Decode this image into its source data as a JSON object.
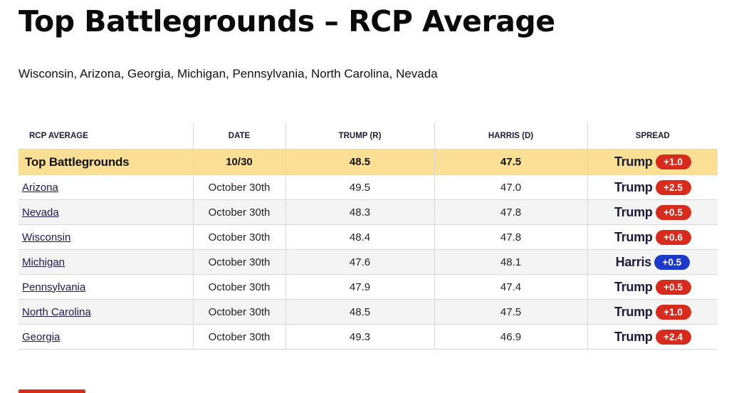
{
  "page": {
    "title": "Top Battlegrounds – RCP Average",
    "subtitle": "Wisconsin, Arizona, Georgia, Michigan, Pennsylvania, North Carolina, Nevada"
  },
  "table": {
    "headers": {
      "name": "RCP AVERAGE",
      "date": "DATE",
      "trump": "TRUMP (R)",
      "harris": "HARRIS (D)",
      "spread": "SPREAD"
    },
    "average": {
      "name": "Top Battlegrounds",
      "date": "10/30",
      "trump": "48.5",
      "harris": "47.5",
      "leader": "Trump",
      "margin": "+1.0",
      "party": "R"
    },
    "rows": [
      {
        "name": "Arizona",
        "date": "October 30th",
        "trump": "49.5",
        "harris": "47.0",
        "leader": "Trump",
        "margin": "+2.5",
        "party": "R"
      },
      {
        "name": "Nevada",
        "date": "October 30th",
        "trump": "48.3",
        "harris": "47.8",
        "leader": "Trump",
        "margin": "+0.5",
        "party": "R"
      },
      {
        "name": "Wisconsin",
        "date": "October 30th",
        "trump": "48.4",
        "harris": "47.8",
        "leader": "Trump",
        "margin": "+0.6",
        "party": "R"
      },
      {
        "name": "Michigan",
        "date": "October 30th",
        "trump": "47.6",
        "harris": "48.1",
        "leader": "Harris",
        "margin": "+0.5",
        "party": "D"
      },
      {
        "name": "Pennsylvania",
        "date": "October 30th",
        "trump": "47.9",
        "harris": "47.4",
        "leader": "Trump",
        "margin": "+0.5",
        "party": "R"
      },
      {
        "name": "North Carolina",
        "date": "October 30th",
        "trump": "48.5",
        "harris": "47.5",
        "leader": "Trump",
        "margin": "+1.0",
        "party": "R"
      },
      {
        "name": "Georgia",
        "date": "October 30th",
        "trump": "49.3",
        "harris": "46.9",
        "leader": "Trump",
        "margin": "+2.4",
        "party": "R"
      }
    ]
  },
  "colors": {
    "republican": "#d72b1d",
    "democrat": "#1c39c9",
    "highlight_row": "#fbdf94"
  }
}
